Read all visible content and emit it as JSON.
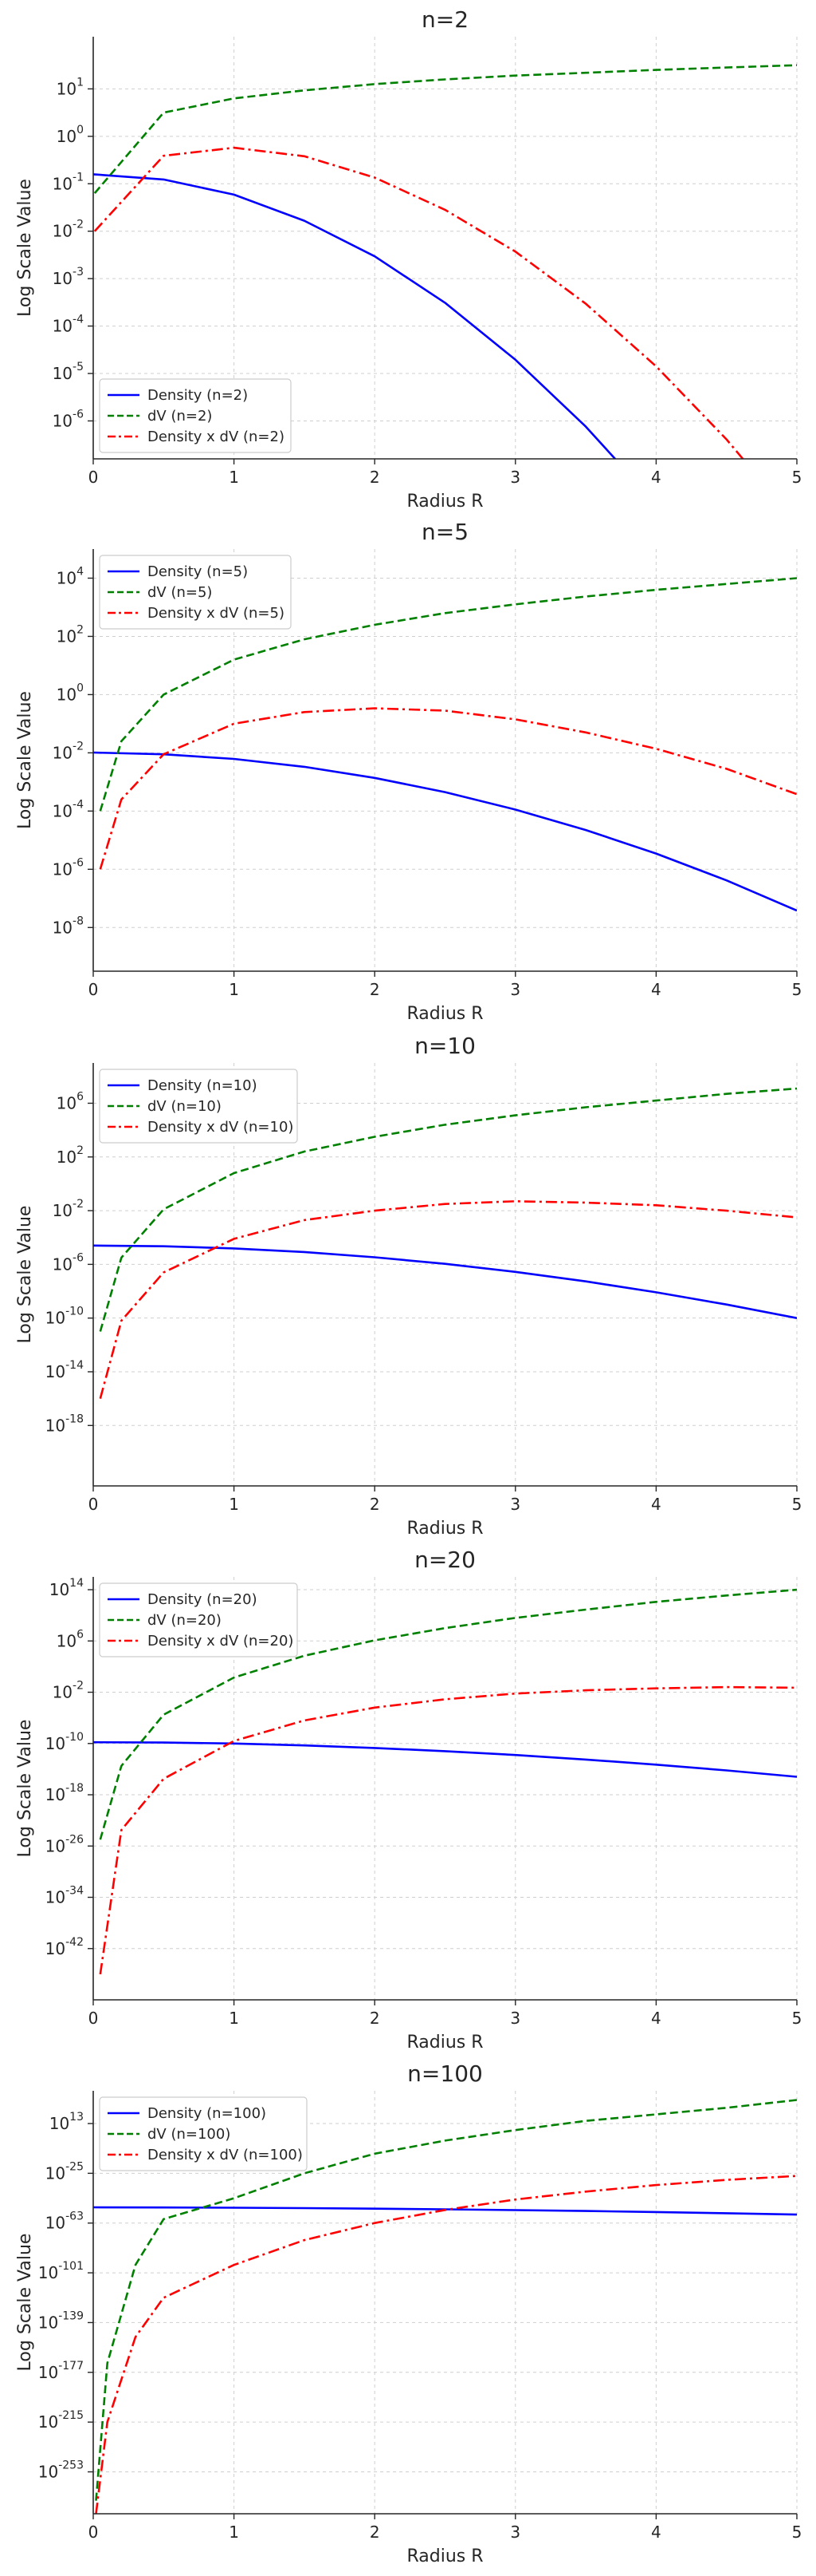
{
  "colors": {
    "density": "#0000ff",
    "dv": "#008000",
    "product": "#ff0000"
  },
  "chart_data": [
    {
      "type": "line",
      "title": "n=2",
      "xlabel": "Radius R",
      "ylabel": "Log Scale Value",
      "x_scale": "linear",
      "y_scale": "log",
      "xlim": [
        0,
        5
      ],
      "ylim_exp": [
        -6.8,
        2.1
      ],
      "x_ticks": [
        "0",
        "1",
        "2",
        "3",
        "4",
        "5"
      ],
      "y_ticks": [
        {
          "base": "10",
          "exp": "1"
        },
        {
          "base": "10",
          "exp": "0"
        },
        {
          "base": "10",
          "exp": "-1"
        },
        {
          "base": "10",
          "exp": "-2"
        },
        {
          "base": "10",
          "exp": "-3"
        },
        {
          "base": "10",
          "exp": "-4"
        },
        {
          "base": "10",
          "exp": "-5"
        },
        {
          "base": "10",
          "exp": "-6"
        }
      ],
      "grid": true,
      "legend_position": "lower-left",
      "series": [
        {
          "name": "Density (n=2)",
          "style": "solid",
          "color_key": "density",
          "x": [
            0,
            0.5,
            1,
            1.5,
            2,
            2.5,
            3,
            3.5,
            4,
            4.5,
            5
          ],
          "y_log10": [
            -0.8,
            -0.91,
            -1.23,
            -1.78,
            -2.53,
            -3.51,
            -4.71,
            -6.12,
            -7.75,
            -9.6,
            -11.66
          ]
        },
        {
          "name": "dV (n=2)",
          "style": "dashed",
          "color_key": "dv",
          "x": [
            0.01,
            0.5,
            1,
            1.5,
            2,
            2.5,
            3,
            3.5,
            4,
            4.5,
            5
          ],
          "y_log10": [
            -1.2,
            0.5,
            0.8,
            0.97,
            1.1,
            1.2,
            1.28,
            1.34,
            1.4,
            1.45,
            1.5
          ]
        },
        {
          "name": "Density x dV (n=2)",
          "style": "dashdot",
          "color_key": "product",
          "x": [
            0.01,
            0.5,
            1,
            1.5,
            2,
            2.5,
            3,
            3.5,
            4,
            4.5,
            5
          ],
          "y_log10": [
            -2.0,
            -0.41,
            -0.24,
            -0.42,
            -0.87,
            -1.55,
            -2.43,
            -3.53,
            -4.85,
            -6.39,
            -8.16
          ]
        }
      ]
    },
    {
      "type": "line",
      "title": "n=5",
      "xlabel": "Radius R",
      "ylabel": "Log Scale Value",
      "x_scale": "linear",
      "y_scale": "log",
      "xlim": [
        0,
        5
      ],
      "ylim_exp": [
        -9.5,
        5.0
      ],
      "x_ticks": [
        "0",
        "1",
        "2",
        "3",
        "4",
        "5"
      ],
      "y_ticks": [
        {
          "base": "10",
          "exp": "4"
        },
        {
          "base": "10",
          "exp": "2"
        },
        {
          "base": "10",
          "exp": "0"
        },
        {
          "base": "10",
          "exp": "-2"
        },
        {
          "base": "10",
          "exp": "-4"
        },
        {
          "base": "10",
          "exp": "-6"
        },
        {
          "base": "10",
          "exp": "-8"
        }
      ],
      "grid": true,
      "legend_position": "upper-left",
      "series": [
        {
          "name": "Density (n=5)",
          "style": "solid",
          "color_key": "density",
          "x": [
            0,
            0.5,
            1,
            1.5,
            2,
            2.5,
            3,
            3.5,
            4,
            4.5,
            5
          ],
          "y_log10": [
            -1.99,
            -2.05,
            -2.21,
            -2.48,
            -2.86,
            -3.35,
            -3.95,
            -4.65,
            -5.46,
            -6.38,
            -7.42
          ]
        },
        {
          "name": "dV (n=5)",
          "style": "dashed",
          "color_key": "dv",
          "x": [
            0.05,
            0.2,
            0.5,
            1,
            1.5,
            2,
            2.5,
            3,
            3.5,
            4,
            4.5,
            5
          ],
          "y_log10": [
            -4.0,
            -1.6,
            0.0,
            1.2,
            1.9,
            2.4,
            2.8,
            3.1,
            3.37,
            3.6,
            3.8,
            4.0
          ]
        },
        {
          "name": "Density x dV (n=5)",
          "style": "dashdot",
          "color_key": "product",
          "x": [
            0.05,
            0.2,
            0.5,
            1,
            1.5,
            2,
            2.5,
            3,
            3.5,
            4,
            4.5,
            5
          ],
          "y_log10": [
            -6.0,
            -3.6,
            -2.05,
            -1.0,
            -0.6,
            -0.47,
            -0.55,
            -0.85,
            -1.3,
            -1.86,
            -2.55,
            -3.42
          ]
        }
      ]
    },
    {
      "type": "line",
      "title": "n=10",
      "xlabel": "Radius R",
      "ylabel": "Log Scale Value",
      "x_scale": "linear",
      "y_scale": "log",
      "xlim": [
        0,
        5
      ],
      "ylim_exp": [
        -22.5,
        9.0
      ],
      "x_ticks": [
        "0",
        "1",
        "2",
        "3",
        "4",
        "5"
      ],
      "y_ticks": [
        {
          "base": "10",
          "exp": "6"
        },
        {
          "base": "10",
          "exp": "2"
        },
        {
          "base": "10",
          "exp": "-2"
        },
        {
          "base": "10",
          "exp": "-6"
        },
        {
          "base": "10",
          "exp": "-10"
        },
        {
          "base": "10",
          "exp": "-14"
        },
        {
          "base": "10",
          "exp": "-18"
        }
      ],
      "grid": true,
      "legend_position": "upper-left",
      "series": [
        {
          "name": "Density (n=10)",
          "style": "solid",
          "color_key": "density",
          "x": [
            0,
            0.5,
            1,
            1.5,
            2,
            2.5,
            3,
            3.5,
            4,
            4.5,
            5
          ],
          "y_log10": [
            -4.6,
            -4.65,
            -4.81,
            -5.08,
            -5.47,
            -5.96,
            -6.56,
            -7.27,
            -8.08,
            -8.99,
            -10.0
          ]
        },
        {
          "name": "dV (n=10)",
          "style": "dashed",
          "color_key": "dv",
          "x": [
            0.05,
            0.2,
            0.5,
            1,
            1.5,
            2,
            2.5,
            3,
            3.5,
            4,
            4.5,
            5
          ],
          "y_log10": [
            -11.0,
            -5.5,
            -1.9,
            0.8,
            2.4,
            3.5,
            4.4,
            5.1,
            5.7,
            6.2,
            6.7,
            7.1
          ]
        },
        {
          "name": "Density x dV (n=10)",
          "style": "dashdot",
          "color_key": "product",
          "x": [
            0.05,
            0.2,
            0.5,
            1,
            1.5,
            2,
            2.5,
            3,
            3.5,
            4,
            4.5,
            5
          ],
          "y_log10": [
            -16.0,
            -10.2,
            -6.6,
            -4.1,
            -2.7,
            -2.0,
            -1.5,
            -1.3,
            -1.4,
            -1.6,
            -2.0,
            -2.5
          ]
        }
      ]
    },
    {
      "type": "line",
      "title": "n=20",
      "xlabel": "Radius R",
      "ylabel": "Log Scale Value",
      "x_scale": "linear",
      "y_scale": "log",
      "xlim": [
        0,
        5
      ],
      "ylim_exp": [
        -50,
        16
      ],
      "x_ticks": [
        "0",
        "1",
        "2",
        "3",
        "4",
        "5"
      ],
      "y_ticks": [
        {
          "base": "10",
          "exp": "14"
        },
        {
          "base": "10",
          "exp": "6"
        },
        {
          "base": "10",
          "exp": "-2"
        },
        {
          "base": "10",
          "exp": "-10"
        },
        {
          "base": "10",
          "exp": "-18"
        },
        {
          "base": "10",
          "exp": "-26"
        },
        {
          "base": "10",
          "exp": "-34"
        },
        {
          "base": "10",
          "exp": "-42"
        }
      ],
      "grid": true,
      "legend_position": "upper-left",
      "series": [
        {
          "name": "Density (n=20)",
          "style": "solid",
          "color_key": "density",
          "x": [
            0,
            0.5,
            1,
            1.5,
            2,
            2.5,
            3,
            3.5,
            4,
            4.5,
            5
          ],
          "y_log10": [
            -9.8,
            -9.85,
            -10.0,
            -10.3,
            -10.7,
            -11.2,
            -11.8,
            -12.5,
            -13.3,
            -14.2,
            -15.2
          ]
        },
        {
          "name": "dV (n=20)",
          "style": "dashed",
          "color_key": "dv",
          "x": [
            0.05,
            0.2,
            0.5,
            1,
            1.5,
            2,
            2.5,
            3,
            3.5,
            4,
            4.5,
            5
          ],
          "y_log10": [
            -25.0,
            -13.5,
            -5.5,
            0.3,
            3.7,
            6.1,
            8.0,
            9.6,
            10.9,
            12.1,
            13.1,
            14.0
          ]
        },
        {
          "name": "Density x dV (n=20)",
          "style": "dashdot",
          "color_key": "product",
          "x": [
            0.05,
            0.2,
            0.5,
            1,
            1.5,
            2,
            2.5,
            3,
            3.5,
            4,
            4.5,
            5
          ],
          "y_log10": [
            -46.0,
            -23.5,
            -15.5,
            -9.6,
            -6.4,
            -4.4,
            -3.1,
            -2.2,
            -1.7,
            -1.4,
            -1.2,
            -1.3
          ]
        }
      ]
    },
    {
      "type": "line",
      "title": "n=100",
      "xlabel": "Radius R",
      "ylabel": "Log Scale Value",
      "x_scale": "linear",
      "y_scale": "log",
      "xlim": [
        0,
        5
      ],
      "ylim_exp": [
        -285,
        38
      ],
      "x_ticks": [
        "0",
        "1",
        "2",
        "3",
        "4",
        "5"
      ],
      "y_ticks": [
        {
          "base": "10",
          "exp": "13"
        },
        {
          "base": "10",
          "exp": "-25"
        },
        {
          "base": "10",
          "exp": "-63"
        },
        {
          "base": "10",
          "exp": "-101"
        },
        {
          "base": "10",
          "exp": "-139"
        },
        {
          "base": "10",
          "exp": "-177"
        },
        {
          "base": "10",
          "exp": "-215"
        },
        {
          "base": "10",
          "exp": "-253"
        }
      ],
      "grid": true,
      "legend_position": "upper-left",
      "series": [
        {
          "name": "Density (n=100)",
          "style": "solid",
          "color_key": "density",
          "x": [
            0,
            0.5,
            1,
            1.5,
            2,
            2.5,
            3,
            3.5,
            4,
            4.5,
            5
          ],
          "y_log10": [
            -51.0,
            -51.1,
            -51.3,
            -51.6,
            -52.0,
            -52.5,
            -53.1,
            -53.8,
            -54.6,
            -55.5,
            -56.5
          ]
        },
        {
          "name": "dV (n=100)",
          "style": "dashed",
          "color_key": "dv",
          "x": [
            0.02,
            0.1,
            0.3,
            0.5,
            1,
            1.5,
            2,
            2.5,
            3,
            3.5,
            4,
            4.5,
            5
          ],
          "y_log10": [
            -275.0,
            -170.0,
            -95.0,
            -60.0,
            -44.0,
            -25.0,
            -10.0,
            0.0,
            8.0,
            15.0,
            20.0,
            25.0,
            31.0
          ]
        },
        {
          "name": "Density x dV (n=100)",
          "style": "dashdot",
          "color_key": "product",
          "x": [
            0.02,
            0.1,
            0.3,
            0.5,
            1,
            1.5,
            2,
            2.5,
            3,
            3.5,
            4,
            4.5,
            5
          ],
          "y_log10": [
            -285.0,
            -215.0,
            -150.0,
            -120.0,
            -95.0,
            -76.0,
            -63.0,
            -53.0,
            -45.0,
            -39.0,
            -34.0,
            -30.0,
            -27.0
          ]
        }
      ]
    }
  ]
}
